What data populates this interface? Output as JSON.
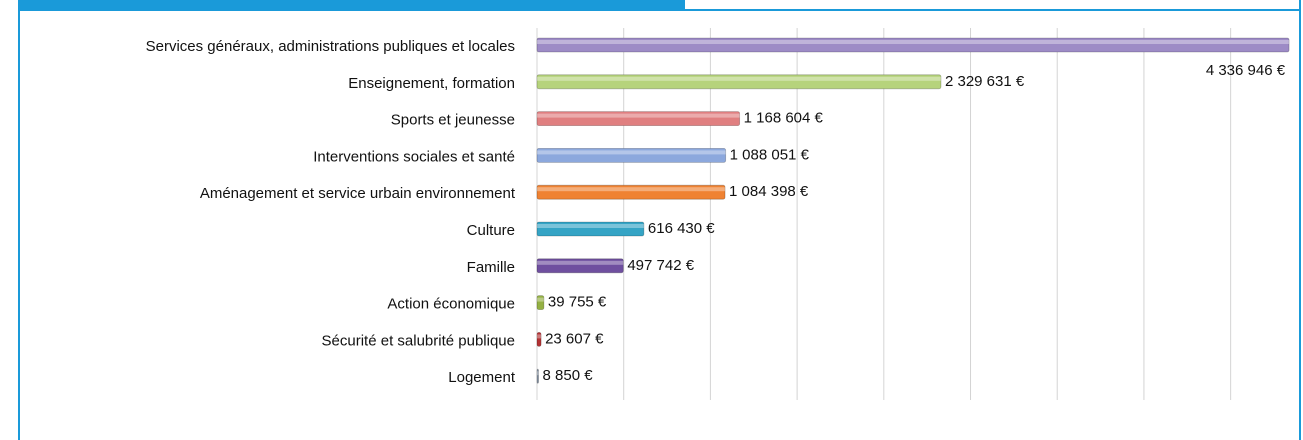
{
  "chart_data": {
    "type": "barh",
    "categories": [
      "Services généraux, administrations publiques et locales",
      "Enseignement, formation",
      "Sports et jeunesse",
      "Interventions sociales et santé",
      "Aménagement et service urbain environnement",
      "Culture",
      "Famille",
      "Action économique",
      "Sécurité et salubrité publique",
      "Logement"
    ],
    "values": [
      4336946,
      2329631,
      1168604,
      1088051,
      1084398,
      616430,
      497742,
      39755,
      23607,
      8850
    ],
    "value_labels": [
      "4 336 946 €",
      "2 329 631 €",
      "1 168 604 €",
      "1 088 051 €",
      "1 084 398 €",
      "616 430 €",
      "497 742 €",
      "39 755 €",
      "23 607 €",
      "8 850 €"
    ],
    "colors": [
      "#9d8bc6",
      "#b6d37c",
      "#e07f80",
      "#8ca8dd",
      "#ef8232",
      "#35a4c5",
      "#6f4f9f",
      "#94b043",
      "#b33234",
      "#8391a3"
    ],
    "xlim": [
      0,
      4400000
    ],
    "xticks": [
      0,
      500000,
      1000000,
      1500000,
      2000000,
      2500000,
      3000000,
      3500000,
      4000000
    ],
    "grid": true
  }
}
